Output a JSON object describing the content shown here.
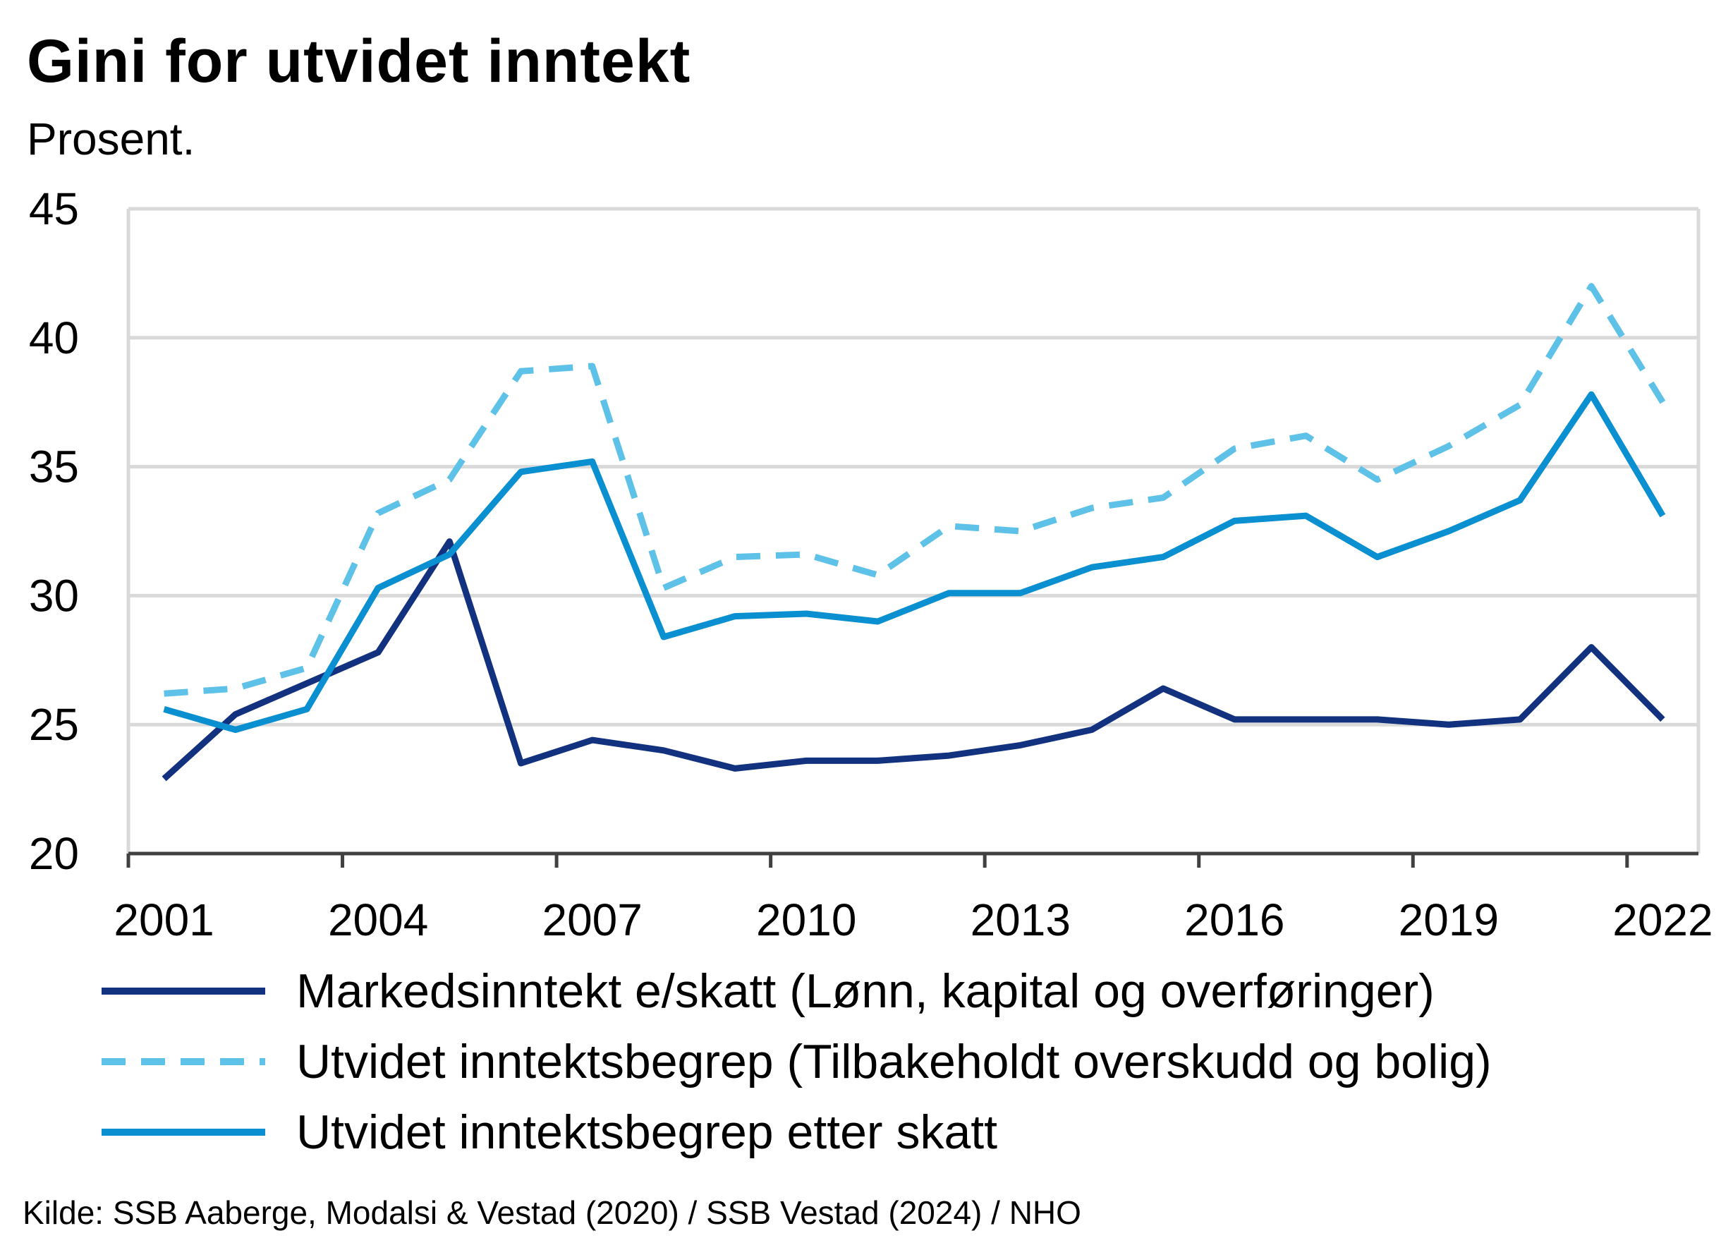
{
  "chart_data": {
    "type": "line",
    "title": "Gini for utvidet inntekt",
    "subtitle": "Prosent.",
    "source": "Kilde: SSB Aaberge, Modalsi & Vestad (2020)  / SSB Vestad (2024)  / NHO",
    "xlabel": "",
    "ylabel": "",
    "ylim": [
      20,
      45
    ],
    "yticks": [
      20,
      25,
      30,
      35,
      40,
      45
    ],
    "xlim": [
      2001,
      2022
    ],
    "xticks": [
      2001,
      2004,
      2007,
      2010,
      2013,
      2016,
      2019,
      2022
    ],
    "grid": true,
    "legend_position": "bottom",
    "x": [
      2001,
      2002,
      2003,
      2004,
      2005,
      2006,
      2007,
      2008,
      2009,
      2010,
      2011,
      2012,
      2013,
      2014,
      2015,
      2016,
      2017,
      2018,
      2019,
      2020,
      2021,
      2022
    ],
    "series": [
      {
        "name": "Markedsinntekt e/skatt (Lønn, kapital og overføringer)",
        "color": "#12327f",
        "style": "solid",
        "values": [
          22.9,
          25.4,
          26.6,
          27.8,
          32.1,
          23.5,
          24.4,
          24.0,
          23.3,
          23.6,
          23.6,
          23.8,
          24.2,
          24.8,
          26.4,
          25.2,
          25.2,
          25.2,
          25.0,
          25.2,
          28.0,
          25.2
        ]
      },
      {
        "name": "Utvidet inntektsbegrep (Tilbakeholdt overskudd og bolig)",
        "color": "#5ec1e8",
        "style": "dashed",
        "values": [
          26.2,
          26.4,
          27.2,
          33.2,
          34.5,
          38.7,
          38.9,
          30.3,
          31.5,
          31.6,
          30.8,
          32.7,
          32.5,
          33.4,
          33.8,
          35.7,
          36.2,
          34.5,
          35.8,
          37.4,
          42.0,
          37.5
        ]
      },
      {
        "name": "Utvidet inntektsbegrep etter skatt",
        "color": "#0a8fd0",
        "style": "solid",
        "values": [
          25.6,
          24.8,
          25.6,
          30.3,
          31.6,
          34.8,
          35.2,
          28.4,
          29.2,
          29.3,
          29.0,
          30.1,
          30.1,
          31.1,
          31.5,
          32.9,
          33.1,
          31.5,
          32.5,
          33.7,
          37.8,
          33.1
        ]
      }
    ]
  }
}
